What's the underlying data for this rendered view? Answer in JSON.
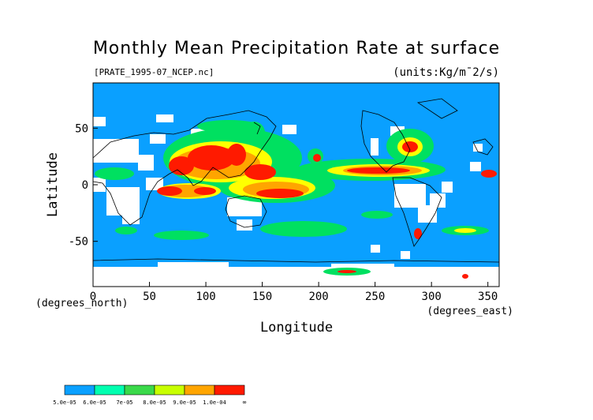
{
  "title": "Monthly Mean Precipitation Rate at surface",
  "file_label": "[PRATE_1995-07_NCEP.nc]",
  "units_label": "(units:Kg/m¯2/s)",
  "x_axis": {
    "label": "Longitude",
    "unit_note": "(degrees_east)",
    "ticks": [
      0,
      50,
      100,
      150,
      200,
      250,
      300,
      350
    ],
    "range": [
      0,
      360
    ]
  },
  "y_axis": {
    "label": "Latitude",
    "unit_note": "(degrees_north)",
    "ticks": [
      50,
      0,
      -50
    ],
    "range": [
      -90,
      90
    ]
  },
  "legend": {
    "bins": [
      {
        "label": "5.0e-05",
        "color": "#0aa0ff"
      },
      {
        "label": "6.0e-05",
        "color": "#00ffb0"
      },
      {
        "label": "7e-05",
        "color": "#3ad94a"
      },
      {
        "label": "8.0e-05",
        "color": "#c8ff00"
      },
      {
        "label": "9.0e-05",
        "color": "#ffa500"
      },
      {
        "label": "1.0e-04",
        "color": "#ff1a00"
      }
    ],
    "end_label": "∞"
  },
  "colors": {
    "ocean": "#0aa0ff",
    "missing": "#ffffff",
    "green": "#00e060",
    "yellow": "#ffff00",
    "orange": "#ffa500",
    "red": "#ff1a00",
    "dark_red": "#cc0000"
  }
}
